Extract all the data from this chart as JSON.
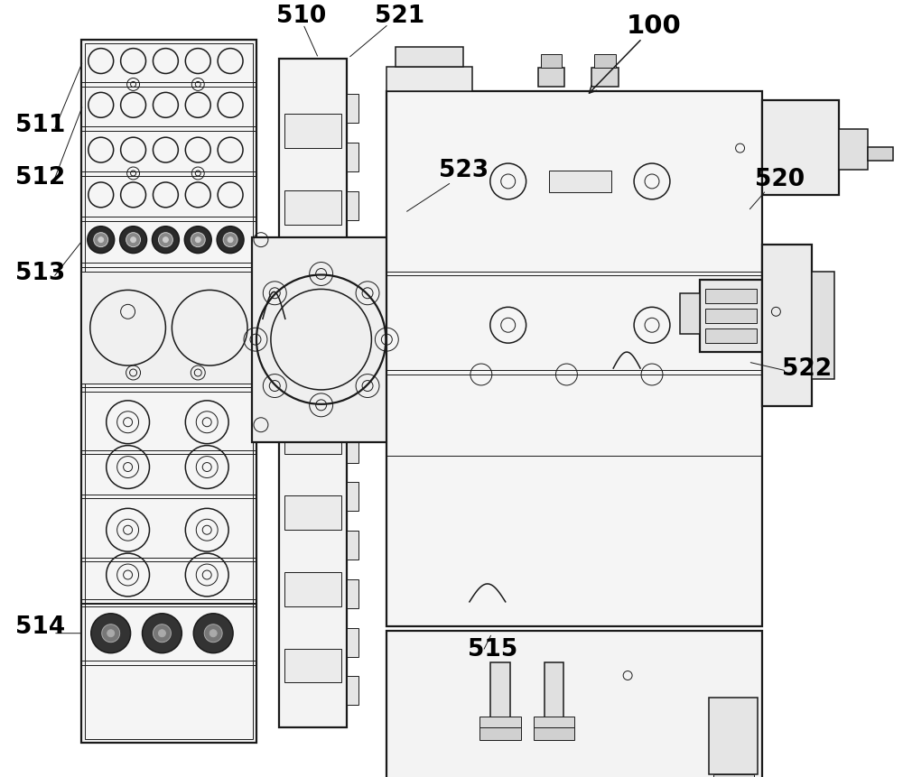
{
  "bg_color": "#ffffff",
  "line_color": "#1a1a1a",
  "light_gray": "#cccccc",
  "mid_gray": "#999999",
  "dark_fill": "#2a2a2a"
}
